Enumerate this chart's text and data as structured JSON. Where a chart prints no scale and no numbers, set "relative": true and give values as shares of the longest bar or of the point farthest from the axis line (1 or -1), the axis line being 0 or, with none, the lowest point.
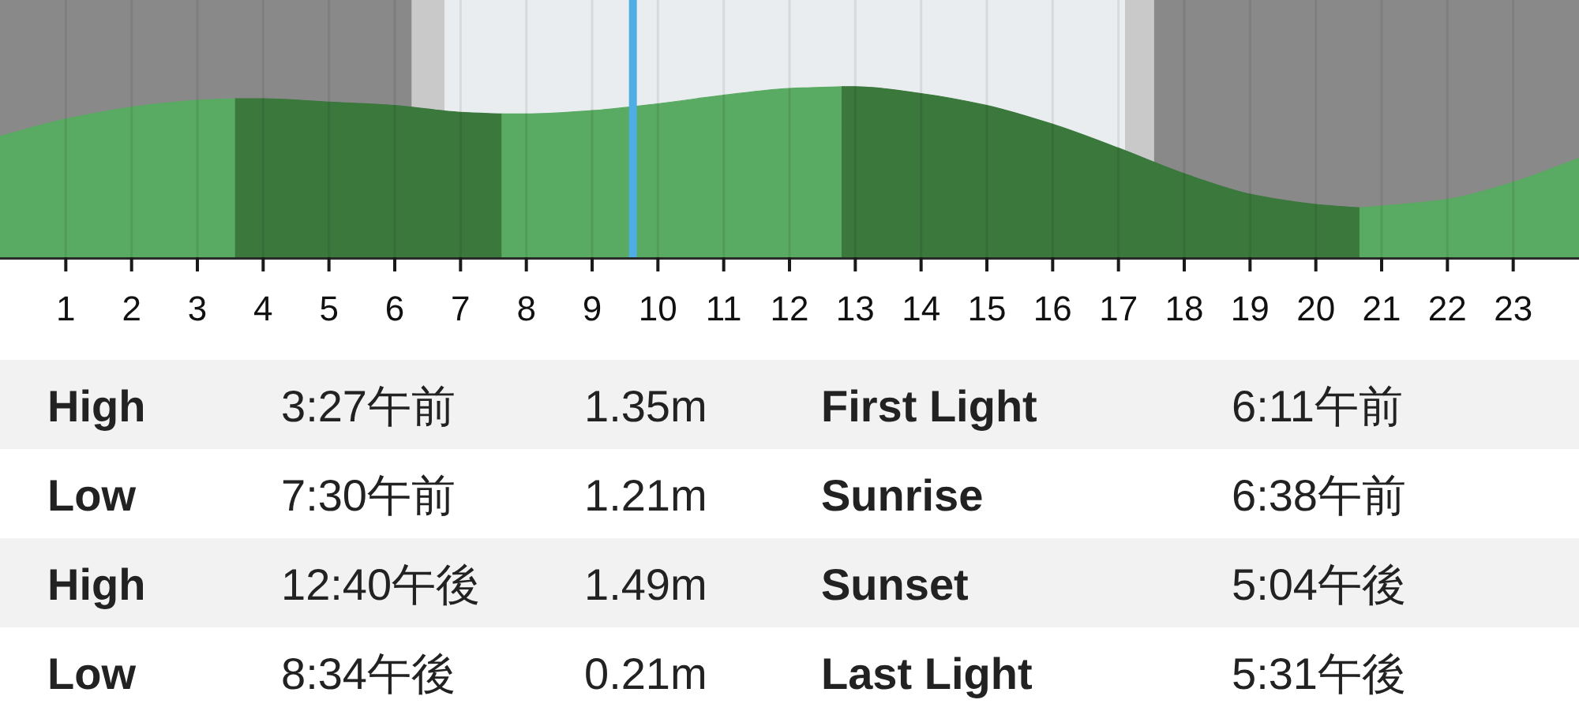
{
  "chart_data": [
    {
      "type": "area",
      "relative": true,
      "xlim": [
        0,
        24
      ],
      "xticks": [
        1,
        2,
        3,
        4,
        5,
        6,
        7,
        8,
        9,
        10,
        11,
        12,
        13,
        14,
        15,
        16,
        17,
        18,
        19,
        20,
        21,
        22,
        23
      ],
      "grid": "x",
      "bands": [
        {
          "axis": "x",
          "from": 0,
          "to": 6.26,
          "color": "#898989"
        },
        {
          "axis": "x",
          "from": 6.26,
          "to": 6.76,
          "color": "#c9c9c9"
        },
        {
          "axis": "x",
          "from": 6.76,
          "to": 17.1,
          "color": "#e9edf0"
        },
        {
          "axis": "x",
          "from": 17.1,
          "to": 17.54,
          "color": "#c9c9c9"
        },
        {
          "axis": "x",
          "from": 17.54,
          "to": 24,
          "color": "#898989"
        }
      ],
      "ref_lines": [
        {
          "axis": "x",
          "value": 9.62,
          "color": "#4eaee3"
        }
      ],
      "series": [
        {
          "color": "#59aa62",
          "x": [
            0,
            1,
            2,
            3,
            3.58
          ],
          "values": [
            0.71,
            0.81,
            0.88,
            0.92,
            0.93
          ]
        },
        {
          "color": "#3a783c",
          "x": [
            3.58,
            4,
            5,
            6,
            7,
            7.63
          ],
          "values": [
            0.93,
            0.93,
            0.91,
            0.89,
            0.85,
            0.84
          ]
        },
        {
          "color": "#59aa62",
          "x": [
            7.63,
            8,
            9,
            10,
            11,
            12,
            12.8
          ],
          "values": [
            0.84,
            0.84,
            0.86,
            0.9,
            0.95,
            0.99,
            1
          ]
        },
        {
          "color": "#3a783c",
          "x": [
            12.8,
            13,
            14,
            15,
            16,
            17,
            18,
            19,
            20,
            20.67
          ],
          "values": [
            1,
            1,
            0.96,
            0.89,
            0.78,
            0.64,
            0.49,
            0.37,
            0.31,
            0.29
          ]
        },
        {
          "color": "#59aa62",
          "x": [
            20.67,
            21,
            22,
            23,
            24
          ],
          "values": [
            0.29,
            0.3,
            0.34,
            0.44,
            0.58
          ]
        }
      ]
    },
    {
      "type": "other",
      "annotations": [
        "High",
        "3:27午前",
        "1.35m",
        "First Light",
        "6:11午前",
        "Low",
        "7:30午前",
        "1.21m",
        "Sunrise",
        "6:38午前",
        "High",
        "12:40午後",
        "1.49m",
        "Sunset",
        "5:04午後",
        "Low",
        "8:34午後",
        "0.21m",
        "Last Light",
        "5:31午後"
      ]
    }
  ]
}
